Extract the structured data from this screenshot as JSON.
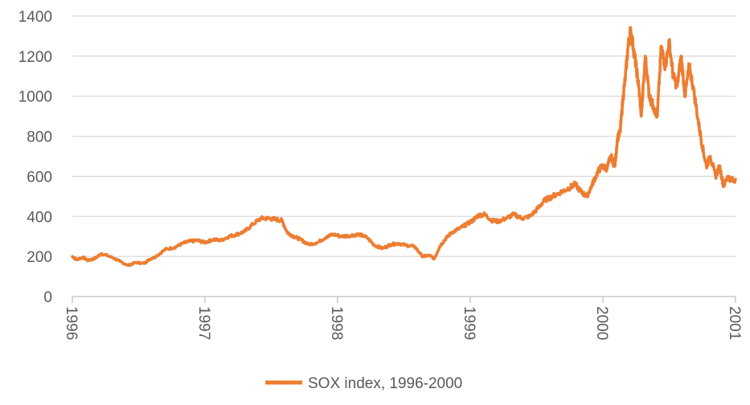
{
  "chart_data": {
    "type": "line",
    "title": "",
    "xlabel": "",
    "ylabel": "",
    "ylim": [
      0,
      1400
    ],
    "y_ticks": [
      0,
      200,
      400,
      600,
      800,
      1000,
      1200,
      1400
    ],
    "x_range": [
      1996,
      2001
    ],
    "x_ticks": [
      "1996",
      "1997",
      "1998",
      "1999",
      "2000",
      "2001"
    ],
    "grid": "horizontal",
    "legend_position": "bottom",
    "series": [
      {
        "name": "SOX index, 1996-2000",
        "color": "#ED7D31",
        "x": [
          1996.0,
          1996.03,
          1996.08,
          1996.12,
          1996.17,
          1996.22,
          1996.3,
          1996.36,
          1996.42,
          1996.48,
          1996.54,
          1996.58,
          1996.63,
          1996.7,
          1996.77,
          1996.83,
          1996.88,
          1996.94,
          1997.0,
          1997.06,
          1997.12,
          1997.18,
          1997.24,
          1997.3,
          1997.36,
          1997.42,
          1997.48,
          1997.53,
          1997.58,
          1997.62,
          1997.67,
          1997.72,
          1997.78,
          1997.85,
          1997.92,
          1997.97,
          1998.03,
          1998.1,
          1998.16,
          1998.22,
          1998.28,
          1998.34,
          1998.4,
          1998.46,
          1998.52,
          1998.58,
          1998.64,
          1998.69,
          1998.73,
          1998.77,
          1998.81,
          1998.86,
          1998.92,
          1998.97,
          1999.02,
          1999.06,
          1999.11,
          1999.16,
          1999.21,
          1999.27,
          1999.33,
          1999.39,
          1999.45,
          1999.51,
          1999.56,
          1999.62,
          1999.68,
          1999.74,
          1999.79,
          1999.84,
          1999.88,
          1999.92,
          1999.96,
          1999.99,
          2000.03,
          2000.06,
          2000.09,
          2000.11,
          2000.13,
          2000.15,
          2000.17,
          2000.19,
          2000.21,
          2000.23,
          2000.25,
          2000.27,
          2000.29,
          2000.32,
          2000.35,
          2000.38,
          2000.41,
          2000.44,
          2000.47,
          2000.5,
          2000.53,
          2000.56,
          2000.59,
          2000.62,
          2000.65,
          2000.68,
          2000.72,
          2000.75,
          2000.78,
          2000.81,
          2000.85,
          2000.88,
          2000.91,
          2000.94,
          2000.97,
          2001.0
        ],
        "values": [
          200,
          185,
          195,
          180,
          190,
          215,
          195,
          175,
          155,
          170,
          165,
          185,
          200,
          235,
          245,
          265,
          275,
          280,
          270,
          285,
          280,
          300,
          310,
          325,
          360,
          390,
          390,
          385,
          380,
          320,
          300,
          285,
          260,
          270,
          300,
          310,
          300,
          305,
          310,
          295,
          255,
          240,
          260,
          265,
          255,
          250,
          200,
          205,
          190,
          250,
          285,
          320,
          340,
          360,
          380,
          405,
          410,
          380,
          375,
          390,
          410,
          390,
          400,
          440,
          480,
          500,
          520,
          540,
          560,
          520,
          500,
          560,
          620,
          650,
          640,
          700,
          650,
          790,
          820,
          980,
          1100,
          1250,
          1330,
          1240,
          1150,
          1050,
          900,
          1200,
          1000,
          950,
          900,
          1250,
          1150,
          1270,
          1100,
          1050,
          1200,
          1000,
          1150,
          1050,
          870,
          750,
          650,
          700,
          600,
          650,
          550,
          600,
          580,
          585
        ]
      }
    ]
  }
}
